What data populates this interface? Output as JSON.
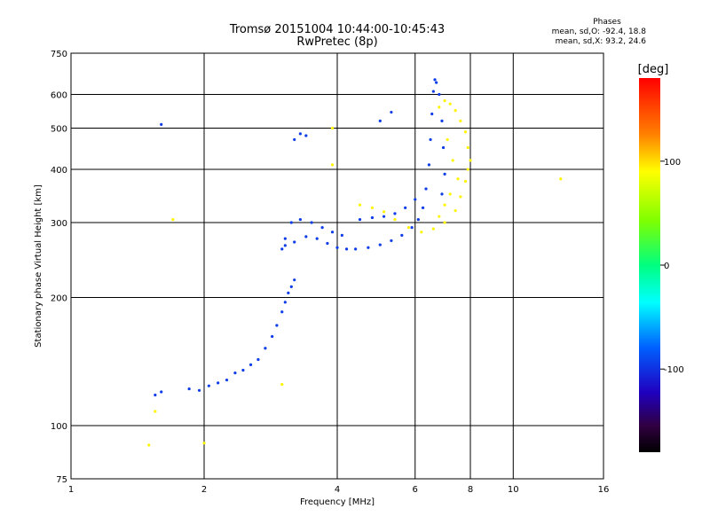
{
  "chart_data": {
    "type": "scatter",
    "title": "Tromsø 20151004 10:44:00-10:45:43",
    "subtitle": "RwPretec (8p)",
    "xlabel": "Frequency [MHz]",
    "ylabel": "Stationary phase Virtual Height [km]",
    "xscale": "log",
    "yscale": "log",
    "xlim": [
      1,
      16
    ],
    "ylim": [
      75,
      750
    ],
    "xticks": [
      1,
      2,
      4,
      6,
      8,
      10,
      16
    ],
    "xtick_labels": [
      "1",
      "2",
      "4",
      "6",
      "8",
      "10",
      "16"
    ],
    "yticks": [
      75,
      100,
      200,
      300,
      400,
      500,
      600,
      750
    ],
    "ytick_labels": [
      "75",
      "100",
      "200",
      "300",
      "400",
      "500",
      "600",
      "750"
    ],
    "grid": true,
    "phase_stats": {
      "heading": "Phases",
      "o_line": "mean, sd,O: -92.4, 18.8",
      "x_line": "mean, sd,X:  93.2, 24.6"
    },
    "colorbar": {
      "label": "[deg]",
      "range": [
        -180,
        180
      ],
      "ticks": [
        100,
        0,
        -100
      ],
      "tick_labels": [
        "100",
        "0",
        "-100"
      ]
    },
    "series": [
      {
        "mode": "O",
        "phase_deg": -95,
        "points": [
          [
            1.85,
            122
          ],
          [
            1.95,
            121
          ],
          [
            2.05,
            124
          ],
          [
            2.15,
            126
          ],
          [
            2.25,
            128
          ],
          [
            2.35,
            133
          ],
          [
            2.45,
            135
          ],
          [
            2.55,
            139
          ],
          [
            2.65,
            143
          ],
          [
            2.75,
            152
          ],
          [
            2.85,
            162
          ],
          [
            2.92,
            172
          ],
          [
            3.0,
            185
          ],
          [
            3.05,
            195
          ],
          [
            3.1,
            205
          ],
          [
            3.15,
            212
          ],
          [
            3.2,
            220
          ],
          [
            3.0,
            260
          ],
          [
            3.05,
            275
          ],
          [
            3.15,
            300
          ],
          [
            3.3,
            305
          ],
          [
            3.5,
            300
          ],
          [
            3.7,
            292
          ],
          [
            3.9,
            285
          ],
          [
            4.1,
            280
          ],
          [
            3.05,
            265
          ],
          [
            3.2,
            270
          ],
          [
            3.4,
            278
          ],
          [
            3.6,
            275
          ],
          [
            3.8,
            268
          ],
          [
            4.0,
            262
          ],
          [
            4.2,
            260
          ],
          [
            4.4,
            260
          ],
          [
            4.7,
            262
          ],
          [
            5.0,
            266
          ],
          [
            5.3,
            272
          ],
          [
            5.6,
            280
          ],
          [
            5.9,
            292
          ],
          [
            6.1,
            305
          ],
          [
            6.25,
            325
          ],
          [
            6.35,
            360
          ],
          [
            6.45,
            410
          ],
          [
            6.5,
            470
          ],
          [
            6.55,
            540
          ],
          [
            6.6,
            610
          ],
          [
            6.65,
            650
          ],
          [
            6.7,
            640
          ],
          [
            6.8,
            600
          ],
          [
            6.9,
            520
          ],
          [
            6.95,
            450
          ],
          [
            7.0,
            390
          ],
          [
            6.9,
            350
          ],
          [
            4.5,
            305
          ],
          [
            4.8,
            308
          ],
          [
            5.1,
            310
          ],
          [
            5.4,
            315
          ],
          [
            5.7,
            325
          ],
          [
            6.0,
            340
          ],
          [
            3.2,
            470
          ],
          [
            3.3,
            485
          ],
          [
            3.4,
            480
          ],
          [
            5.0,
            520
          ],
          [
            5.3,
            545
          ],
          [
            1.6,
            510
          ],
          [
            1.55,
            118
          ],
          [
            1.6,
            120
          ]
        ]
      },
      {
        "mode": "X",
        "phase_deg": 93,
        "points": [
          [
            4.5,
            330
          ],
          [
            4.8,
            325
          ],
          [
            5.1,
            318
          ],
          [
            5.4,
            305
          ],
          [
            5.8,
            292
          ],
          [
            6.2,
            285
          ],
          [
            6.6,
            290
          ],
          [
            7.0,
            300
          ],
          [
            7.4,
            320
          ],
          [
            7.6,
            345
          ],
          [
            7.8,
            375
          ],
          [
            7.9,
            400
          ],
          [
            8.0,
            420
          ],
          [
            7.9,
            450
          ],
          [
            7.8,
            490
          ],
          [
            7.6,
            520
          ],
          [
            7.4,
            550
          ],
          [
            7.2,
            570
          ],
          [
            7.0,
            580
          ],
          [
            6.8,
            560
          ],
          [
            7.1,
            470
          ],
          [
            7.3,
            420
          ],
          [
            7.5,
            380
          ],
          [
            7.2,
            350
          ],
          [
            7.0,
            330
          ],
          [
            6.8,
            310
          ],
          [
            12.8,
            380
          ],
          [
            3.9,
            500
          ],
          [
            3.9,
            410
          ],
          [
            1.5,
            90
          ],
          [
            1.55,
            108
          ],
          [
            2.0,
            91
          ],
          [
            1.7,
            305
          ],
          [
            3.0,
            125
          ]
        ]
      }
    ]
  }
}
